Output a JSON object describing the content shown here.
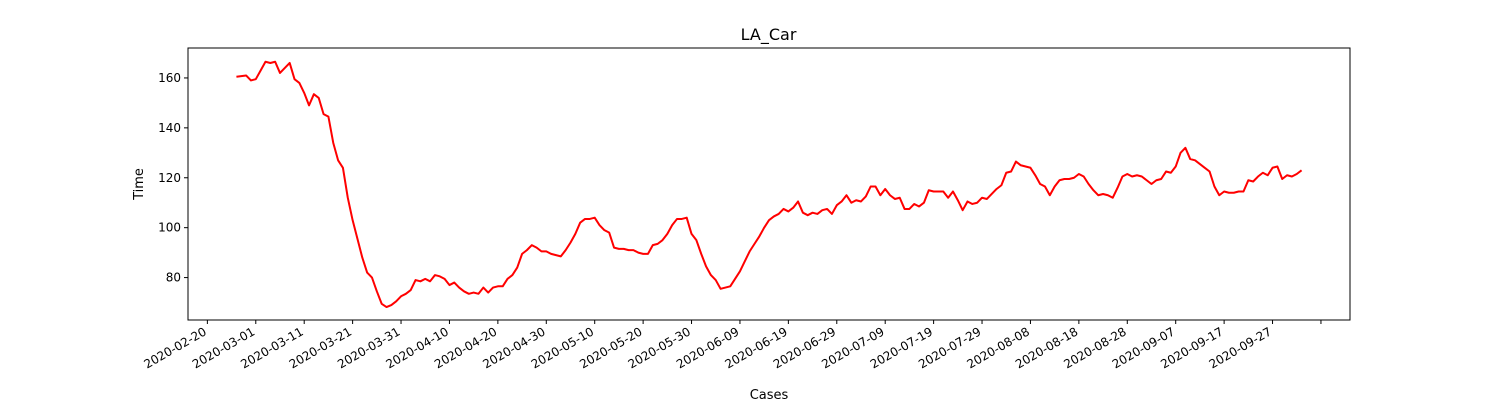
{
  "chart_data": {
    "type": "line",
    "title": "LA_Car",
    "xlabel": "Cases",
    "ylabel": "Time",
    "ylim": [
      63,
      172
    ],
    "xlim": [
      "2020-02-16",
      "2020-10-13"
    ],
    "grid": false,
    "x_ticks": [
      "2020-02-20",
      "2020-03-01",
      "2020-03-11",
      "2020-03-21",
      "2020-03-31",
      "2020-04-10",
      "2020-04-20",
      "2020-04-30",
      "2020-05-10",
      "2020-05-20",
      "2020-05-30",
      "2020-06-09",
      "2020-06-19",
      "2020-06-29",
      "2020-07-09",
      "2020-07-19",
      "2020-07-29",
      "2020-08-08",
      "2020-08-18",
      "2020-08-28",
      "2020-09-07",
      "2020-09-17",
      "2020-09-27"
    ],
    "x_ticks_unlabeled": [
      "2020-10-07"
    ],
    "y_ticks": [
      80,
      100,
      120,
      140,
      160
    ],
    "series": [
      {
        "color": "#ff0000",
        "points": [
          [
            "2020-02-26",
            160.5
          ],
          [
            "2020-02-28",
            161
          ],
          [
            "2020-02-29",
            159
          ],
          [
            "2020-03-01",
            159.5
          ],
          [
            "2020-03-02",
            163
          ],
          [
            "2020-03-03",
            166.5
          ],
          [
            "2020-03-04",
            166
          ],
          [
            "2020-03-05",
            166.5
          ],
          [
            "2020-03-06",
            162
          ],
          [
            "2020-03-08",
            166
          ],
          [
            "2020-03-09",
            159.5
          ],
          [
            "2020-03-10",
            158
          ],
          [
            "2020-03-11",
            154
          ],
          [
            "2020-03-12",
            149
          ],
          [
            "2020-03-13",
            153.5
          ],
          [
            "2020-03-14",
            152
          ],
          [
            "2020-03-15",
            145.5
          ],
          [
            "2020-03-16",
            144.5
          ],
          [
            "2020-03-17",
            134
          ],
          [
            "2020-03-18",
            127
          ],
          [
            "2020-03-19",
            124
          ],
          [
            "2020-03-20",
            112
          ],
          [
            "2020-03-21",
            103
          ],
          [
            "2020-03-22",
            95.5
          ],
          [
            "2020-03-23",
            88
          ],
          [
            "2020-03-24",
            82
          ],
          [
            "2020-03-25",
            80
          ],
          [
            "2020-03-26",
            74.5
          ],
          [
            "2020-03-27",
            69.5
          ],
          [
            "2020-03-28",
            68.2
          ],
          [
            "2020-03-29",
            69
          ],
          [
            "2020-03-30",
            70.5
          ],
          [
            "2020-03-31",
            72.5
          ],
          [
            "2020-04-01",
            73.5
          ],
          [
            "2020-04-02",
            75
          ],
          [
            "2020-04-03",
            79
          ],
          [
            "2020-04-04",
            78.5
          ],
          [
            "2020-04-05",
            79.5
          ],
          [
            "2020-04-06",
            78.5
          ],
          [
            "2020-04-07",
            81
          ],
          [
            "2020-04-08",
            80.5
          ],
          [
            "2020-04-09",
            79.5
          ],
          [
            "2020-04-10",
            77
          ],
          [
            "2020-04-11",
            78
          ],
          [
            "2020-04-12",
            76
          ],
          [
            "2020-04-13",
            74.5
          ],
          [
            "2020-04-14",
            73.5
          ],
          [
            "2020-04-15",
            74
          ],
          [
            "2020-04-16",
            73.5
          ],
          [
            "2020-04-17",
            76
          ],
          [
            "2020-04-18",
            74
          ],
          [
            "2020-04-19",
            76
          ],
          [
            "2020-04-20",
            76.5
          ],
          [
            "2020-04-21",
            76.5
          ],
          [
            "2020-04-22",
            79.5
          ],
          [
            "2020-04-23",
            81
          ],
          [
            "2020-04-24",
            84
          ],
          [
            "2020-04-25",
            89.5
          ],
          [
            "2020-04-26",
            91
          ],
          [
            "2020-04-27",
            93
          ],
          [
            "2020-04-28",
            92
          ],
          [
            "2020-04-29",
            90.5
          ],
          [
            "2020-04-30",
            90.5
          ],
          [
            "2020-05-01",
            89.5
          ],
          [
            "2020-05-02",
            89
          ],
          [
            "2020-05-03",
            88.5
          ],
          [
            "2020-05-04",
            91
          ],
          [
            "2020-05-05",
            94
          ],
          [
            "2020-05-06",
            97.5
          ],
          [
            "2020-05-07",
            102
          ],
          [
            "2020-05-08",
            103.5
          ],
          [
            "2020-05-09",
            103.5
          ],
          [
            "2020-05-10",
            104
          ],
          [
            "2020-05-11",
            101
          ],
          [
            "2020-05-12",
            99
          ],
          [
            "2020-05-13",
            98
          ],
          [
            "2020-05-14",
            92
          ],
          [
            "2020-05-15",
            91.5
          ],
          [
            "2020-05-16",
            91.5
          ],
          [
            "2020-05-17",
            91
          ],
          [
            "2020-05-18",
            91
          ],
          [
            "2020-05-19",
            90
          ],
          [
            "2020-05-20",
            89.5
          ],
          [
            "2020-05-21",
            89.5
          ],
          [
            "2020-05-22",
            93
          ],
          [
            "2020-05-23",
            93.5
          ],
          [
            "2020-05-24",
            95
          ],
          [
            "2020-05-25",
            97.5
          ],
          [
            "2020-05-26",
            101
          ],
          [
            "2020-05-27",
            103.5
          ],
          [
            "2020-05-28",
            103.5
          ],
          [
            "2020-05-29",
            104
          ],
          [
            "2020-05-30",
            97.5
          ],
          [
            "2020-05-31",
            95
          ],
          [
            "2020-06-01",
            89.5
          ],
          [
            "2020-06-02",
            84.5
          ],
          [
            "2020-06-03",
            81
          ],
          [
            "2020-06-04",
            79
          ],
          [
            "2020-06-05",
            75.5
          ],
          [
            "2020-06-06",
            76
          ],
          [
            "2020-06-07",
            76.5
          ],
          [
            "2020-06-08",
            79.5
          ],
          [
            "2020-06-09",
            82.5
          ],
          [
            "2020-06-10",
            86.5
          ],
          [
            "2020-06-11",
            90.5
          ],
          [
            "2020-06-12",
            93.5
          ],
          [
            "2020-06-13",
            96.5
          ],
          [
            "2020-06-14",
            100
          ],
          [
            "2020-06-15",
            103
          ],
          [
            "2020-06-16",
            104.5
          ],
          [
            "2020-06-17",
            105.5
          ],
          [
            "2020-06-18",
            107.5
          ],
          [
            "2020-06-19",
            106.5
          ],
          [
            "2020-06-20",
            108
          ],
          [
            "2020-06-21",
            110.5
          ],
          [
            "2020-06-22",
            106
          ],
          [
            "2020-06-23",
            105
          ],
          [
            "2020-06-24",
            106
          ],
          [
            "2020-06-25",
            105.5
          ],
          [
            "2020-06-26",
            107
          ],
          [
            "2020-06-27",
            107.5
          ],
          [
            "2020-06-28",
            105.5
          ],
          [
            "2020-06-29",
            109
          ],
          [
            "2020-06-30",
            110.5
          ],
          [
            "2020-07-01",
            113
          ],
          [
            "2020-07-02",
            110
          ],
          [
            "2020-07-03",
            111
          ],
          [
            "2020-07-04",
            110.5
          ],
          [
            "2020-07-05",
            112.5
          ],
          [
            "2020-07-06",
            116.5
          ],
          [
            "2020-07-07",
            116.5
          ],
          [
            "2020-07-08",
            113
          ],
          [
            "2020-07-09",
            115.5
          ],
          [
            "2020-07-10",
            113
          ],
          [
            "2020-07-11",
            111.5
          ],
          [
            "2020-07-12",
            112
          ],
          [
            "2020-07-13",
            107.5
          ],
          [
            "2020-07-14",
            107.5
          ],
          [
            "2020-07-15",
            109.5
          ],
          [
            "2020-07-16",
            108.5
          ],
          [
            "2020-07-17",
            110
          ],
          [
            "2020-07-18",
            115
          ],
          [
            "2020-07-19",
            114.5
          ],
          [
            "2020-07-20",
            114.5
          ],
          [
            "2020-07-21",
            114.5
          ],
          [
            "2020-07-22",
            112
          ],
          [
            "2020-07-23",
            114.5
          ],
          [
            "2020-07-24",
            111
          ],
          [
            "2020-07-25",
            107
          ],
          [
            "2020-07-26",
            110.5
          ],
          [
            "2020-07-27",
            109.5
          ],
          [
            "2020-07-28",
            110
          ],
          [
            "2020-07-29",
            112
          ],
          [
            "2020-07-30",
            111.5
          ],
          [
            "2020-07-31",
            113.5
          ],
          [
            "2020-08-01",
            115.5
          ],
          [
            "2020-08-02",
            117
          ],
          [
            "2020-08-03",
            122
          ],
          [
            "2020-08-04",
            122.5
          ],
          [
            "2020-08-05",
            126.5
          ],
          [
            "2020-08-06",
            125
          ],
          [
            "2020-08-07",
            124.5
          ],
          [
            "2020-08-08",
            124
          ],
          [
            "2020-08-09",
            121
          ],
          [
            "2020-08-10",
            117.5
          ],
          [
            "2020-08-11",
            116.5
          ],
          [
            "2020-08-12",
            113
          ],
          [
            "2020-08-13",
            116.5
          ],
          [
            "2020-08-14",
            119
          ],
          [
            "2020-08-15",
            119.5
          ],
          [
            "2020-08-16",
            119.5
          ],
          [
            "2020-08-17",
            120
          ],
          [
            "2020-08-18",
            121.5
          ],
          [
            "2020-08-19",
            120.5
          ],
          [
            "2020-08-20",
            117.5
          ],
          [
            "2020-08-21",
            115
          ],
          [
            "2020-08-22",
            113
          ],
          [
            "2020-08-23",
            113.5
          ],
          [
            "2020-08-24",
            113
          ],
          [
            "2020-08-25",
            112
          ],
          [
            "2020-08-26",
            116
          ],
          [
            "2020-08-27",
            120.5
          ],
          [
            "2020-08-28",
            121.5
          ],
          [
            "2020-08-29",
            120.5
          ],
          [
            "2020-08-30",
            121
          ],
          [
            "2020-08-31",
            120.5
          ],
          [
            "2020-09-01",
            119
          ],
          [
            "2020-09-02",
            117.5
          ],
          [
            "2020-09-03",
            119
          ],
          [
            "2020-09-04",
            119.5
          ],
          [
            "2020-09-05",
            122.5
          ],
          [
            "2020-09-06",
            122
          ],
          [
            "2020-09-07",
            124.5
          ],
          [
            "2020-09-08",
            130
          ],
          [
            "2020-09-09",
            132
          ],
          [
            "2020-09-10",
            127.5
          ],
          [
            "2020-09-11",
            127
          ],
          [
            "2020-09-12",
            125.5
          ],
          [
            "2020-09-13",
            124
          ],
          [
            "2020-09-14",
            122.5
          ],
          [
            "2020-09-15",
            116.5
          ],
          [
            "2020-09-16",
            113
          ],
          [
            "2020-09-17",
            114.5
          ],
          [
            "2020-09-18",
            114
          ],
          [
            "2020-09-19",
            114
          ],
          [
            "2020-09-20",
            114.5
          ],
          [
            "2020-09-21",
            114.5
          ],
          [
            "2020-09-22",
            119
          ],
          [
            "2020-09-23",
            118.5
          ],
          [
            "2020-09-24",
            120.5
          ],
          [
            "2020-09-25",
            122
          ],
          [
            "2020-09-26",
            121
          ],
          [
            "2020-09-27",
            124
          ],
          [
            "2020-09-28",
            124.5
          ],
          [
            "2020-09-29",
            119.5
          ],
          [
            "2020-09-30",
            121
          ],
          [
            "2020-10-01",
            120.5
          ],
          [
            "2020-10-02",
            121.5
          ],
          [
            "2020-10-03",
            123
          ]
        ]
      }
    ]
  }
}
